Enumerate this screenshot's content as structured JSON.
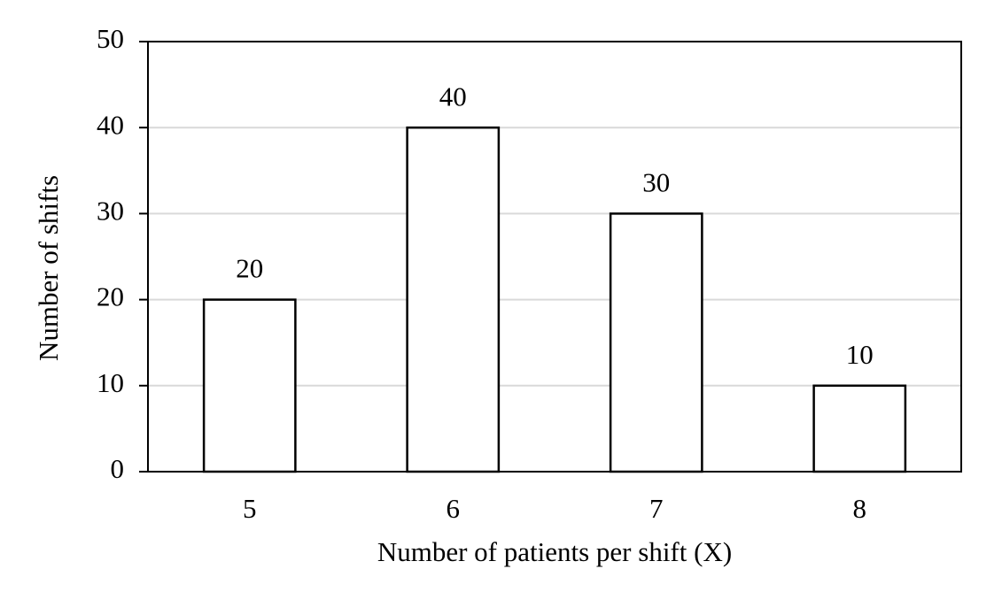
{
  "chart_data": {
    "type": "bar",
    "x_label": "Number of patients per shift (X)",
    "y_label": "Number of shifts",
    "categories": [
      "5",
      "6",
      "7",
      "8"
    ],
    "values": [
      20,
      40,
      30,
      10
    ],
    "color": "#ffffff",
    "edge_color": "#000000",
    "ylim": [
      0,
      50
    ],
    "yticks": [
      0,
      10,
      20,
      30,
      40,
      50
    ],
    "grid": true,
    "show_value_labels": true
  }
}
